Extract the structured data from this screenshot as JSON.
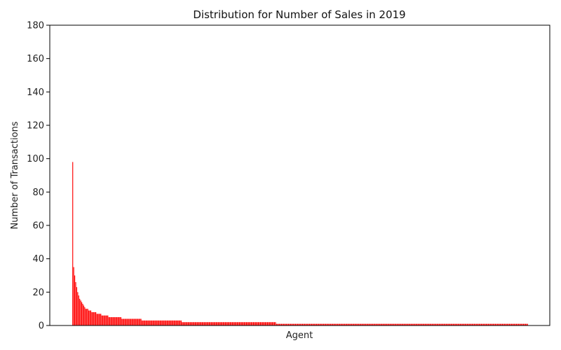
{
  "chart_data": {
    "type": "bar",
    "title": "Distribution for Number of Sales in 2019",
    "xlabel": "Agent",
    "ylabel": "Number of Transactions",
    "ylim": [
      0,
      180
    ],
    "yticks": [
      0,
      20,
      40,
      60,
      80,
      100,
      120,
      140,
      160,
      180
    ],
    "grid": false,
    "x_tick_labels_shown": false,
    "bar_color": "#ff0000",
    "values": [
      98,
      35,
      30,
      26,
      23,
      20,
      18,
      16,
      15,
      14,
      13,
      12,
      11,
      10,
      10,
      10,
      9,
      9,
      9,
      8,
      8,
      8,
      8,
      8,
      7,
      7,
      7,
      7,
      7,
      6,
      6,
      6,
      6,
      6,
      6,
      6,
      5,
      5,
      5,
      5,
      5,
      5,
      5,
      5,
      5,
      5,
      5,
      5,
      5,
      4,
      4,
      4,
      4,
      4,
      4,
      4,
      4,
      4,
      4,
      4,
      4,
      4,
      4,
      4,
      4,
      4,
      4,
      4,
      4,
      3,
      3,
      3,
      3,
      3,
      3,
      3,
      3,
      3,
      3,
      3,
      3,
      3,
      3,
      3,
      3,
      3,
      3,
      3,
      3,
      3,
      3,
      3,
      3,
      3,
      3,
      3,
      3,
      3,
      3,
      3,
      3,
      3,
      3,
      3,
      3,
      3,
      3,
      3,
      3,
      2,
      2,
      2,
      2,
      2,
      2,
      2,
      2,
      2,
      2,
      2,
      2,
      2,
      2,
      2,
      2,
      2,
      2,
      2,
      2,
      2,
      2,
      2,
      2,
      2,
      2,
      2,
      2,
      2,
      2,
      2,
      2,
      2,
      2,
      2,
      2,
      2,
      2,
      2,
      2,
      2,
      2,
      2,
      2,
      2,
      2,
      2,
      2,
      2,
      2,
      2,
      2,
      2,
      2,
      2,
      2,
      2,
      2,
      2,
      2,
      2,
      2,
      2,
      2,
      2,
      2,
      2,
      2,
      2,
      2,
      2,
      2,
      2,
      2,
      2,
      2,
      2,
      2,
      2,
      2,
      2,
      2,
      2,
      2,
      2,
      2,
      2,
      2,
      2,
      2,
      2,
      2,
      2,
      2,
      1,
      1,
      1,
      1,
      1,
      1,
      1,
      1,
      1,
      1,
      1,
      1,
      1,
      1,
      1,
      1,
      1,
      1,
      1,
      1,
      1,
      1,
      1,
      1,
      1,
      1,
      1,
      1,
      1,
      1,
      1,
      1,
      1,
      1,
      1,
      1,
      1,
      1,
      1,
      1,
      1,
      1,
      1,
      1,
      1,
      1,
      1,
      1,
      1,
      1,
      1,
      1,
      1,
      1,
      1,
      1,
      1,
      1,
      1,
      1,
      1,
      1,
      1,
      1,
      1,
      1,
      1,
      1,
      1,
      1,
      1,
      1,
      1,
      1,
      1,
      1,
      1,
      1,
      1,
      1,
      1,
      1,
      1,
      1,
      1,
      1,
      1,
      1,
      1,
      1,
      1,
      1,
      1,
      1,
      1,
      1,
      1,
      1,
      1,
      1,
      1,
      1,
      1,
      1,
      1,
      1,
      1,
      1,
      1,
      1,
      1,
      1,
      1,
      1,
      1,
      1,
      1,
      1,
      1,
      1,
      1,
      1,
      1,
      1,
      1,
      1,
      1,
      1,
      1,
      1,
      1,
      1,
      1,
      1,
      1,
      1,
      1,
      1,
      1,
      1,
      1,
      1,
      1,
      1,
      1,
      1,
      1,
      1,
      1,
      1,
      1,
      1,
      1,
      1,
      1,
      1,
      1,
      1,
      1,
      1,
      1,
      1,
      1,
      1,
      1,
      1,
      1,
      1,
      1,
      1,
      1,
      1,
      1,
      1,
      1,
      1,
      1,
      1,
      1,
      1,
      1,
      1,
      1,
      1,
      1,
      1,
      1,
      1,
      1,
      1,
      1,
      1,
      1,
      1,
      1,
      1,
      1,
      1,
      1,
      1,
      1,
      1,
      1,
      1,
      1,
      1,
      1,
      1,
      1,
      1,
      1,
      1,
      1,
      1,
      1,
      1,
      1,
      1,
      1,
      1,
      1,
      1,
      1,
      1,
      1,
      1,
      1,
      1,
      1,
      1,
      1,
      1,
      1,
      1,
      1,
      1,
      1,
      1,
      1,
      1,
      1,
      1,
      1,
      1,
      1,
      1,
      1,
      1,
      1,
      1,
      1
    ]
  }
}
